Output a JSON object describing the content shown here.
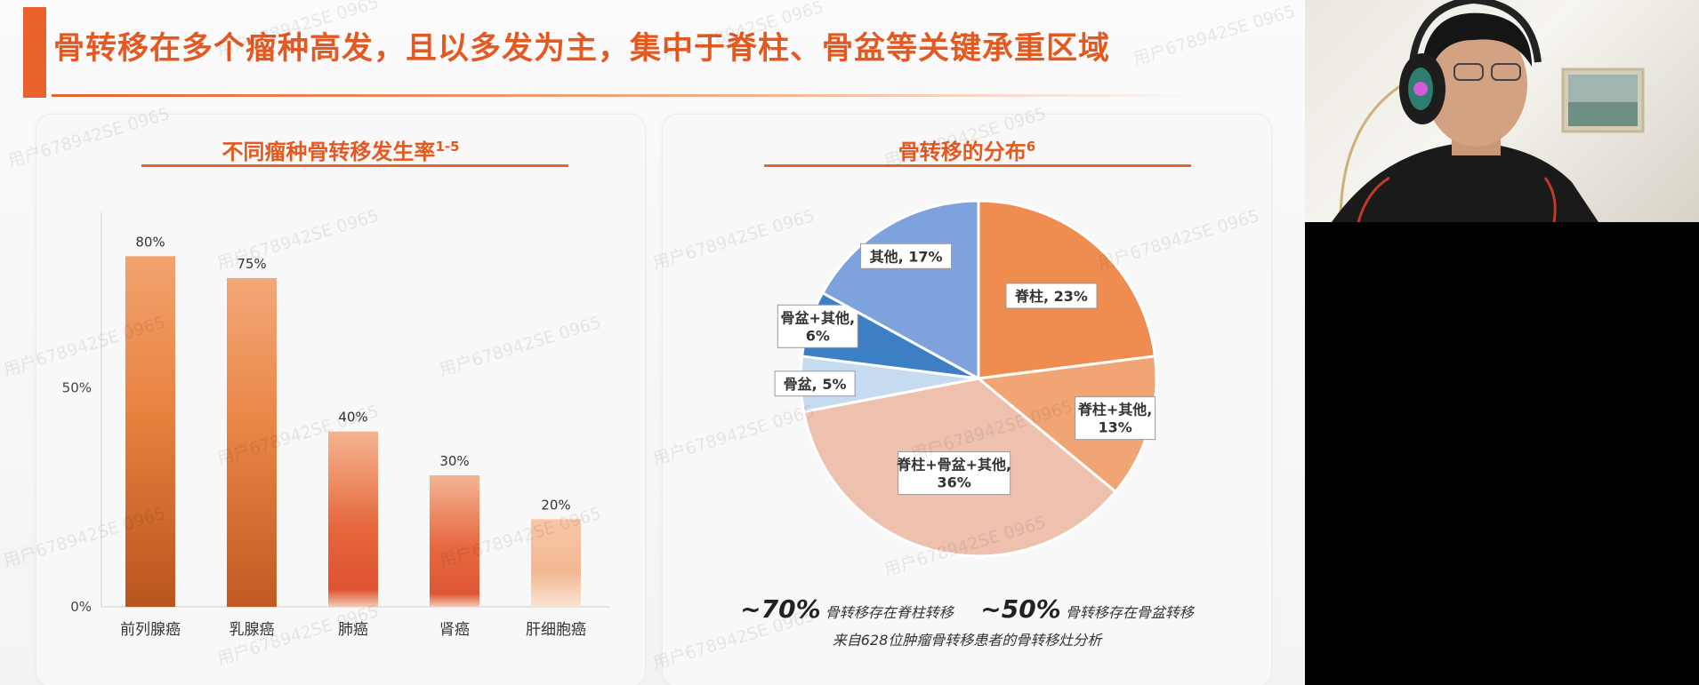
{
  "slide": {
    "title": "骨转移在多个瘤种高发，且以多发为主，集中于脊柱、骨盆等关键承重区域",
    "watermark": "用户678942SE 0965",
    "accent_color": "#e8622c"
  },
  "left_panel": {
    "title": "不同瘤种骨转移发生率",
    "title_sup": "1-5"
  },
  "right_panel": {
    "title": "骨转移的分布",
    "title_sup": "6",
    "footnote_pct_1": "~70%",
    "footnote_text_1": "骨转移存在脊柱转移",
    "footnote_pct_2": "~50%",
    "footnote_text_2": "骨转移存在骨盆转移",
    "footnote_line_2": "来自628位肿瘤骨转移患者的骨转移灶分析"
  },
  "chart_data": [
    {
      "type": "bar",
      "title": "不同瘤种骨转移发生率",
      "categories": [
        "前列腺癌",
        "乳腺癌",
        "肺癌",
        "肾癌",
        "肝细胞癌"
      ],
      "values": [
        80,
        75,
        40,
        30,
        20
      ],
      "value_labels": [
        "80%",
        "75%",
        "40%",
        "30%",
        "20%"
      ],
      "y_ticks": [
        "0%",
        "50%"
      ],
      "ylim": [
        0,
        90
      ],
      "grid": false
    },
    {
      "type": "pie",
      "title": "骨转移的分布",
      "slices": [
        {
          "label": "脊柱, 23%",
          "value": 23,
          "color": "#ee8d4f"
        },
        {
          "label": "脊柱+其他,\n13%",
          "value": 13,
          "color": "#f2a574"
        },
        {
          "label": "脊柱+骨盆+其他,\n36%",
          "value": 36,
          "color": "#eec1ae"
        },
        {
          "label": "骨盆, 5%",
          "value": 5,
          "color": "#c6dbef"
        },
        {
          "label": "骨盆+其他,\n6%",
          "value": 6,
          "color": "#3d7fc4"
        },
        {
          "label": "其他, 17%",
          "value": 17,
          "color": "#7ea2dc"
        }
      ]
    }
  ]
}
